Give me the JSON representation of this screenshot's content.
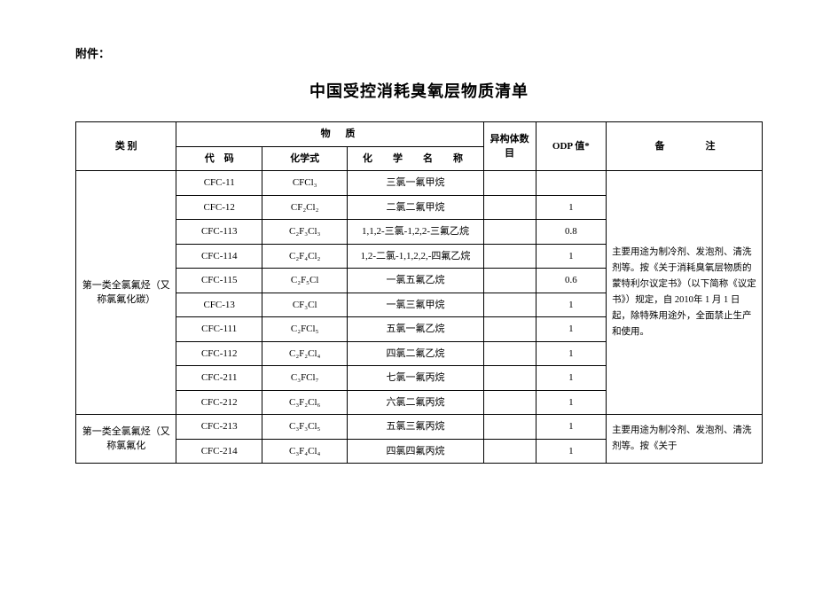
{
  "attachment_label": "附件：",
  "title": "中国受控消耗臭氧层物质清单",
  "headers": {
    "category": "类 别",
    "substance": "物",
    "substance2": "质",
    "code": "代　码",
    "formula": "化学式",
    "chemname": "化　学　名　称",
    "isomer": "异构体数目",
    "odp": "ODP 值*",
    "remark": "备　　注"
  },
  "group1": {
    "category": "第一类全氯氟烃（又称氯氟化碳）",
    "remark": "主要用途为制冷剂、发泡剂、清洗剂等。按《关于消耗臭氧层物质的蒙特利尔议定书》（以下简称《议定书》）规定，自 2010年 1 月 1 日起，除特殊用途外，全面禁止生产和使用。",
    "rows": [
      {
        "code": "CFC-11",
        "formula": "CFCl₃",
        "chemname": "三氯一氟甲烷",
        "isomer": "",
        "odp": ""
      },
      {
        "code": "CFC-12",
        "formula": "CF₂Cl₂",
        "chemname": "二氯二氟甲烷",
        "isomer": "",
        "odp": "1"
      },
      {
        "code": "CFC-113",
        "formula": "C₂F₃Cl₃",
        "chemname": "1,1,2-三氯-1,2,2-三氟乙烷",
        "isomer": "",
        "odp": "0.8"
      },
      {
        "code": "CFC-114",
        "formula": "C₂F₄Cl₂",
        "chemname": "1,2-二氯-1,1,2,2,-四氟乙烷",
        "isomer": "",
        "odp": "1"
      },
      {
        "code": "CFC-115",
        "formula": "C₂F₅Cl",
        "chemname": "一氯五氟乙烷",
        "isomer": "",
        "odp": "0.6"
      },
      {
        "code": "CFC-13",
        "formula": "CF₃Cl",
        "chemname": "一氯三氟甲烷",
        "isomer": "",
        "odp": "1"
      },
      {
        "code": "CFC-111",
        "formula": "C₂FCl₅",
        "chemname": "五氯一氟乙烷",
        "isomer": "",
        "odp": "1"
      },
      {
        "code": "CFC-112",
        "formula": "C₂F₂Cl₄",
        "chemname": "四氯二氟乙烷",
        "isomer": "",
        "odp": "1"
      },
      {
        "code": "CFC-211",
        "formula": "C₃FCl₇",
        "chemname": "七氯一氟丙烷",
        "isomer": "",
        "odp": "1"
      },
      {
        "code": "CFC-212",
        "formula": "C₃F₂Cl₆",
        "chemname": "六氯二氟丙烷",
        "isomer": "",
        "odp": "1"
      }
    ]
  },
  "group2": {
    "category": "第一类全氯氟烃（又称氯氟化",
    "remark": "主要用途为制冷剂、发泡剂、清洗剂等。按《关于",
    "rows": [
      {
        "code": "CFC-213",
        "formula": "C₃F₃Cl₅",
        "chemname": "五氯三氟丙烷",
        "isomer": "",
        "odp": "1"
      },
      {
        "code": "CFC-214",
        "formula": "C₃F₄Cl₄",
        "chemname": "四氯四氟丙烷",
        "isomer": "",
        "odp": "1"
      }
    ]
  }
}
